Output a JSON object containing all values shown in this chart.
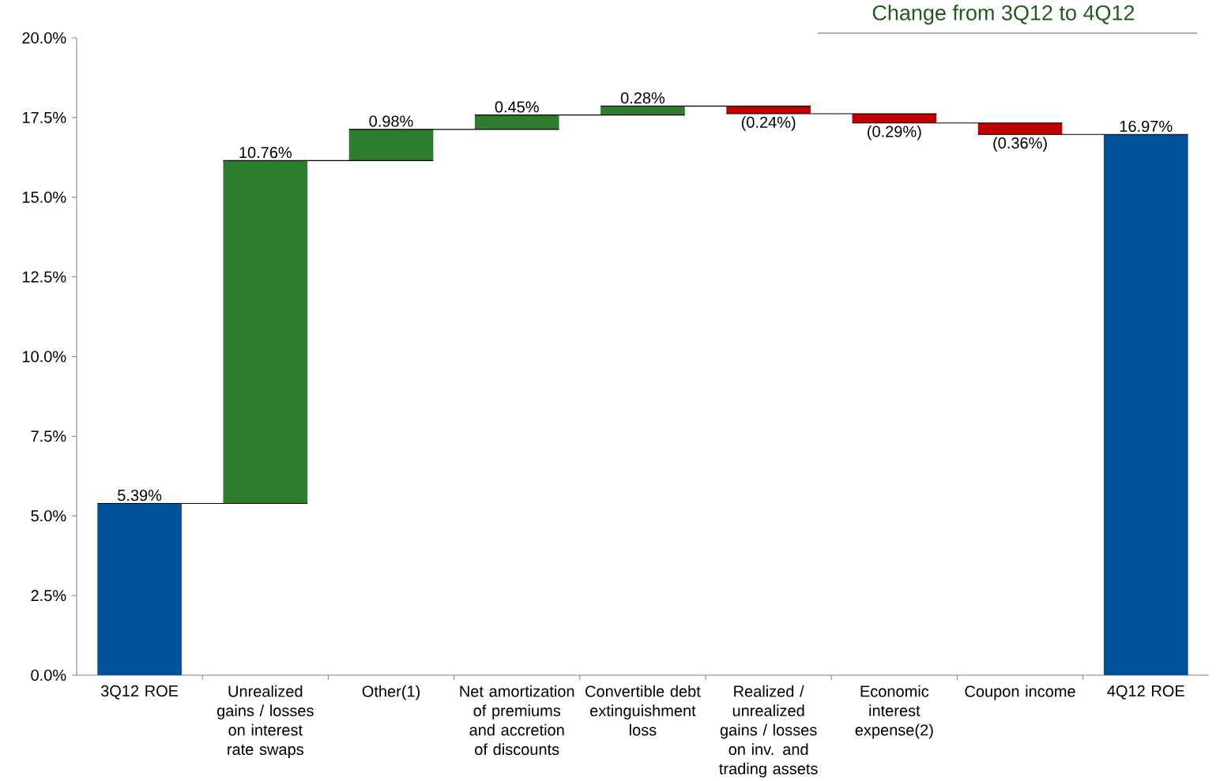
{
  "chart_data": {
    "type": "bar",
    "title": "Change from 3Q12 to 4Q12",
    "categories": [
      "3Q12 ROE",
      "Unrealized gains / losses on interest rate swaps",
      "Other(1)",
      "Net amortization of premiums and accretion of discounts",
      "Convertible debt extinguishment loss",
      "Realized / unrealized gains / losses on inv. and trading assets",
      "Economic interest expense(2)",
      "Coupon income",
      "4Q12 ROE"
    ],
    "values": [
      5.39,
      10.76,
      0.98,
      0.45,
      0.28,
      -0.24,
      -0.29,
      -0.36,
      16.97
    ],
    "base": [
      0,
      5.39,
      16.15,
      17.13,
      17.58,
      17.86,
      17.62,
      17.33,
      0
    ],
    "colors": [
      "#00529b",
      "#2e7d2e",
      "#2e7d2e",
      "#2e7d2e",
      "#2e7d2e",
      "#c00000",
      "#c00000",
      "#c00000",
      "#00529b"
    ],
    "value_labels": [
      "5.39%",
      "10.76%",
      "0.98%",
      "0.45%",
      "0.28%",
      "(0.24%)",
      "(0.29%)",
      "(0.36%)",
      "16.97%"
    ],
    "ylim": [
      0,
      20
    ],
    "yticks": [
      {
        "value": 0,
        "label": "0.0%"
      },
      {
        "value": 2.5,
        "label": "2.5%"
      },
      {
        "value": 5,
        "label": "5.0%"
      },
      {
        "value": 7.5,
        "label": "7.5%"
      },
      {
        "value": 10,
        "label": "10.0%"
      },
      {
        "value": 12.5,
        "label": "12.5%"
      },
      {
        "value": 15,
        "label": "15.0%"
      },
      {
        "value": 17.5,
        "label": "17.5%"
      },
      {
        "value": 20,
        "label": "20.0%"
      }
    ],
    "grid": false
  }
}
